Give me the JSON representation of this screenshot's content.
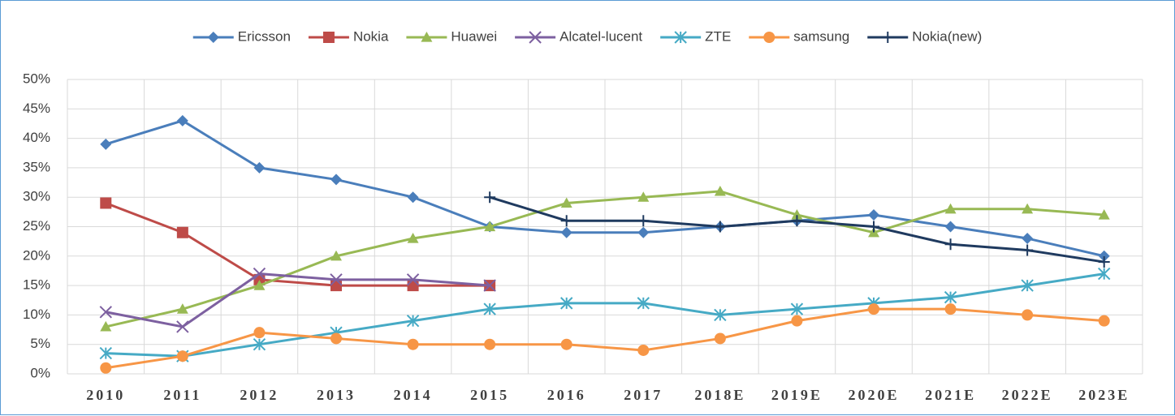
{
  "chart_data": {
    "type": "line",
    "categories": [
      "2010",
      "2011",
      "2012",
      "2013",
      "2014",
      "2015",
      "2016",
      "2017",
      "2018E",
      "2019E",
      "2020E",
      "2021E",
      "2022E",
      "2023E"
    ],
    "ylim": [
      0,
      50
    ],
    "yticks": [
      {
        "value": 0,
        "label": "0%"
      },
      {
        "value": 5,
        "label": "5%"
      },
      {
        "value": 10,
        "label": "10%"
      },
      {
        "value": 15,
        "label": "15%"
      },
      {
        "value": 20,
        "label": "20%"
      },
      {
        "value": 25,
        "label": "25%"
      },
      {
        "value": 30,
        "label": "30%"
      },
      {
        "value": 35,
        "label": "35%"
      },
      {
        "value": 40,
        "label": "40%"
      },
      {
        "value": 45,
        "label": "45%"
      },
      {
        "value": 50,
        "label": "50%"
      }
    ],
    "grid": true,
    "legend": "top",
    "series": [
      {
        "name": "Ericsson",
        "color": "#4a7ebb",
        "marker": "diamond",
        "values": [
          39,
          43,
          35,
          33,
          30,
          25,
          24,
          24,
          25,
          26,
          27,
          25,
          23,
          20
        ]
      },
      {
        "name": "Nokia",
        "color": "#be4b48",
        "marker": "square",
        "values": [
          29,
          24,
          16,
          15,
          15,
          15,
          null,
          null,
          null,
          null,
          null,
          null,
          null,
          null
        ]
      },
      {
        "name": "Huawei",
        "color": "#98b954",
        "marker": "triangle",
        "values": [
          8,
          11,
          15,
          20,
          23,
          25,
          29,
          30,
          31,
          27,
          24,
          28,
          28,
          27
        ]
      },
      {
        "name": "Alcatel-lucent",
        "color": "#7d60a0",
        "marker": "x",
        "values": [
          10.5,
          8,
          17,
          16,
          16,
          15,
          null,
          null,
          null,
          null,
          null,
          null,
          null,
          null
        ]
      },
      {
        "name": "ZTE",
        "color": "#46aac5",
        "marker": "asterisk",
        "values": [
          3.5,
          3,
          5,
          7,
          9,
          11,
          12,
          12,
          10,
          11,
          12,
          13,
          15,
          17
        ]
      },
      {
        "name": "samsung",
        "color": "#f79646",
        "marker": "circle",
        "values": [
          1,
          3,
          7,
          6,
          5,
          5,
          5,
          4,
          6,
          9,
          11,
          11,
          10,
          9
        ]
      },
      {
        "name": "Nokia(new)",
        "color": "#1f3a5f",
        "marker": "plus",
        "values": [
          null,
          null,
          null,
          null,
          null,
          30,
          26,
          26,
          25,
          26,
          25,
          22,
          21,
          19
        ]
      }
    ]
  }
}
